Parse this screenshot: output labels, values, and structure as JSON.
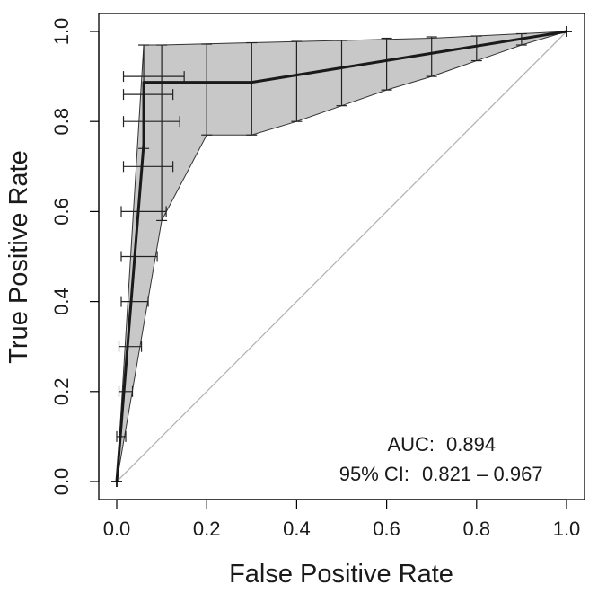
{
  "chart_data": {
    "type": "line",
    "title": "",
    "xlabel": "False Positive Rate",
    "ylabel": "True Positive Rate",
    "xlim": [
      0,
      1
    ],
    "ylim": [
      0,
      1
    ],
    "x_ticks": [
      "0.0",
      "0.2",
      "0.4",
      "0.6",
      "0.8",
      "1.0"
    ],
    "y_ticks": [
      "0.0",
      "0.2",
      "0.4",
      "0.6",
      "0.8",
      "1.0"
    ],
    "grid": false,
    "legend": "none",
    "roc_curve": {
      "points": [
        [
          0,
          0
        ],
        [
          0.06,
          0.75
        ],
        [
          0.06,
          0.887
        ],
        [
          0.3,
          0.887
        ],
        [
          1,
          1
        ]
      ]
    },
    "reference_line": {
      "points": [
        [
          0,
          0
        ],
        [
          1,
          1
        ]
      ]
    },
    "ci_band": {
      "upper": [
        [
          0,
          0
        ],
        [
          0.06,
          0.97
        ],
        [
          0.1,
          0.97
        ],
        [
          0.3,
          0.975
        ],
        [
          0.5,
          0.98
        ],
        [
          0.7,
          0.985
        ],
        [
          1,
          1
        ]
      ],
      "lower": [
        [
          0,
          0
        ],
        [
          0.1,
          0.58
        ],
        [
          0.2,
          0.77
        ],
        [
          0.3,
          0.77
        ],
        [
          0.4,
          0.8
        ],
        [
          0.5,
          0.835
        ],
        [
          0.6,
          0.87
        ],
        [
          0.7,
          0.9
        ],
        [
          0.8,
          0.935
        ],
        [
          0.9,
          0.97
        ],
        [
          1,
          1
        ]
      ]
    },
    "vertical_error_bars": [
      {
        "fpr": 0.06,
        "low": 0.74,
        "high": 0.97
      },
      {
        "fpr": 0.1,
        "low": 0.58,
        "high": 0.97
      },
      {
        "fpr": 0.2,
        "low": 0.77,
        "high": 0.972
      },
      {
        "fpr": 0.3,
        "low": 0.77,
        "high": 0.975
      },
      {
        "fpr": 0.4,
        "low": 0.8,
        "high": 0.978
      },
      {
        "fpr": 0.5,
        "low": 0.835,
        "high": 0.98
      },
      {
        "fpr": 0.6,
        "low": 0.87,
        "high": 0.985
      },
      {
        "fpr": 0.7,
        "low": 0.9,
        "high": 0.988
      },
      {
        "fpr": 0.8,
        "low": 0.935,
        "high": 0.99
      },
      {
        "fpr": 0.9,
        "low": 0.97,
        "high": 0.995
      }
    ],
    "horizontal_error_bars": [
      {
        "tpr": 0.1,
        "low": 0.0,
        "high": 0.02
      },
      {
        "tpr": 0.2,
        "low": 0.005,
        "high": 0.035
      },
      {
        "tpr": 0.3,
        "low": 0.005,
        "high": 0.055
      },
      {
        "tpr": 0.4,
        "low": 0.01,
        "high": 0.07
      },
      {
        "tpr": 0.5,
        "low": 0.01,
        "high": 0.09
      },
      {
        "tpr": 0.6,
        "low": 0.01,
        "high": 0.11
      },
      {
        "tpr": 0.7,
        "low": 0.015,
        "high": 0.125
      },
      {
        "tpr": 0.8,
        "low": 0.015,
        "high": 0.14
      },
      {
        "tpr": 0.86,
        "low": 0.015,
        "high": 0.125
      },
      {
        "tpr": 0.9,
        "low": 0.015,
        "high": 0.15
      }
    ],
    "annotations": {
      "auc_label": "AUC:",
      "auc_value": "0.894",
      "ci_label": "95% CI:",
      "ci_value": "0.821 – 0.967"
    },
    "colors": {
      "curve": "#1a1a1a",
      "band": "#c8c8c8",
      "reference": "#b3b3b3",
      "frame": "#000000"
    }
  }
}
